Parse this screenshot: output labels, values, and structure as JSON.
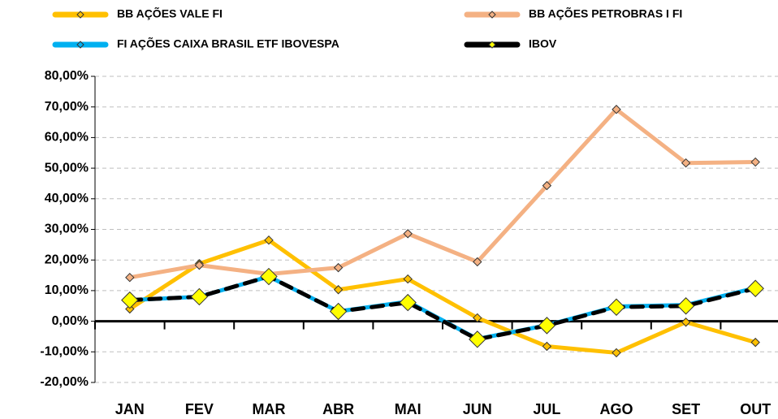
{
  "chart_data": {
    "type": "line",
    "categories": [
      "JAN",
      "FEV",
      "MAR",
      "ABR",
      "MAI",
      "JUN",
      "JUL",
      "AGO",
      "SET",
      "OUT"
    ],
    "series": [
      {
        "name": "BB AÇÕES VALE FI",
        "color": "#ffc000",
        "values": [
          4.0,
          18.8,
          26.5,
          10.3,
          13.8,
          1.1,
          -8.2,
          -10.3,
          -0.3,
          -6.9
        ]
      },
      {
        "name": "BB AÇÕES PETROBRAS I FI",
        "color": "#f4b183",
        "values": [
          14.3,
          18.3,
          15.4,
          17.5,
          28.6,
          19.4,
          44.3,
          69.2,
          51.7,
          52.0
        ]
      },
      {
        "name": "FI AÇÕES CAIXA BRASIL ETF IBOVESPA",
        "color": "#00b0f0",
        "values": [
          6.9,
          8.0,
          14.6,
          3.2,
          6.4,
          -5.8,
          -1.3,
          4.8,
          5.3,
          10.9
        ]
      },
      {
        "name": "IBOV",
        "color": "#000000",
        "values": [
          6.9,
          8.0,
          14.6,
          3.2,
          6.1,
          -5.9,
          -1.4,
          4.6,
          5.0,
          10.7
        ]
      }
    ],
    "ylim": [
      -20,
      80
    ],
    "yticks": [
      {
        "value": -20,
        "label": "-20,00%"
      },
      {
        "value": -10,
        "label": "-10,00%"
      },
      {
        "value": 0,
        "label": "0,00%"
      },
      {
        "value": 10,
        "label": "10,00%"
      },
      {
        "value": 20,
        "label": "20,00%"
      },
      {
        "value": 30,
        "label": "30,00%"
      },
      {
        "value": 40,
        "label": "40,00%"
      },
      {
        "value": 50,
        "label": "50,00%"
      },
      {
        "value": 60,
        "label": "60,00%"
      },
      {
        "value": 70,
        "label": "70,00%"
      },
      {
        "value": 80,
        "label": "80,00%"
      }
    ],
    "grid": true
  }
}
